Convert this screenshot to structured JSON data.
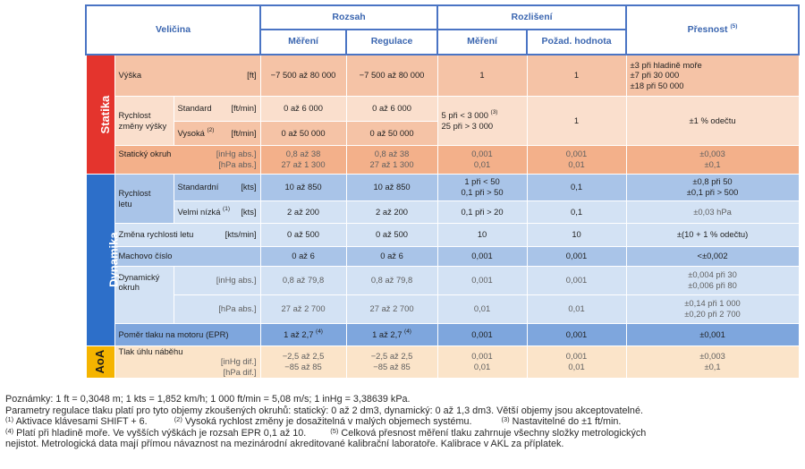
{
  "header": {
    "quantity": "Veličina",
    "range": "Rozsah",
    "resolution": "Rozlišení",
    "accuracy": "Přesnost",
    "accuracy_note": "(5)",
    "measure": "Měření",
    "regulation": "Regulace",
    "res_measure": "Měření",
    "res_required": "Požad. hodnota"
  },
  "sections": {
    "statics": "Statika",
    "dynamics": "Dynamika",
    "aoa": "AoA"
  },
  "rows": {
    "altitude": {
      "label": "Výška",
      "unit": "[ft]",
      "measure": "−7 500 až 80 000",
      "regulation": "−7 500 až 80 000",
      "res_measure": "1",
      "res_required": "1",
      "acc": [
        "±3 při hladině moře",
        "±7 při 30 000",
        "±18 při 50 000"
      ]
    },
    "climb": {
      "label1": "Rychlost",
      "label2": "změny výšky",
      "std_label": "Standard",
      "std_unit": "[ft/min]",
      "std_measure": "0 až 6 000",
      "std_regulation": "0 až 6 000",
      "high_label": "Vysoká",
      "high_note": "(2)",
      "high_unit": "[ft/min]",
      "high_measure": "0 až 50 000",
      "high_regulation": "0 až 50 000",
      "res_line1": "5 při < 3 000",
      "res_line1_note": "(3)",
      "res_line2": "25 při > 3 000",
      "res_required": "1",
      "acc": "±1 % odečtu"
    },
    "static_circuit": {
      "label": "Statický okruh",
      "unit1": "[inHg abs.]",
      "unit2": "[hPa abs.]",
      "measure1": "0,8 až 38",
      "measure2": "27 až 1 300",
      "regulation1": "0,8 až 38",
      "regulation2": "27 až 1 300",
      "res1": "0,001",
      "res2": "0,01",
      "req1": "0,001",
      "req2": "0,01",
      "acc1": "±0,003",
      "acc2": "±0,1"
    },
    "airspeed": {
      "label1": "Rychlost",
      "label2": "letu",
      "std_label": "Standardní",
      "std_unit": "[kts]",
      "std_measure": "10 až 850",
      "std_regulation": "10 až 850",
      "std_res": [
        "1 při < 50",
        "0,1 při > 50"
      ],
      "std_req": "0,1",
      "std_acc": [
        "±0,8 při 50",
        "±0,1 při > 500"
      ],
      "low_label": "Velmi nízká",
      "low_note": "(1)",
      "low_unit": "[kts]",
      "low_measure": "2 až 200",
      "low_regulation": "2 až 200",
      "low_res": "0,1 při > 20",
      "low_req": "0,1",
      "low_acc": "±0,03 hPa"
    },
    "rate_change": {
      "label": "Změna rychlosti letu",
      "unit": "[kts/min]",
      "measure": "0 až 500",
      "regulation": "0 až 500",
      "res": "10",
      "req": "10",
      "acc": "±(10 + 1 % odečtu)"
    },
    "mach": {
      "label": "Machovo číslo",
      "measure": "0 až 6",
      "regulation": "0 až 6",
      "res": "0,001",
      "req": "0,001",
      "acc": "<±0,002"
    },
    "dyn_circuit": {
      "label1": "Dynamický",
      "label2": "okruh",
      "inhg_unit": "[inHg abs.]",
      "inhg_measure": "0,8 až 79,8",
      "inhg_regulation": "0,8 až 79,8",
      "inhg_res": "0,001",
      "inhg_req": "0,001",
      "inhg_acc": [
        "±0,004 při 30",
        "±0,006 při 80"
      ],
      "hpa_unit": "[hPa abs.]",
      "hpa_measure": "27 až 2 700",
      "hpa_regulation": "27 až 2 700",
      "hpa_res": "0,01",
      "hpa_req": "0,01",
      "hpa_acc": [
        "±0,14 při 1 000",
        "±0,20 při 2 700"
      ]
    },
    "epr": {
      "label": "Poměr tlaku na motoru (EPR)",
      "measure": "1 až 2,7",
      "regulation": "1 až 2,7",
      "note": "(4)",
      "res": "0,001",
      "req": "0,001",
      "acc": "±0,001"
    },
    "aoa": {
      "label": "Tlak úhlu náběhu",
      "unit1": "[inHg dif.]",
      "unit2": "[hPa dif.]",
      "measure1": "−2,5 až 2,5",
      "measure2": "−85 až 85",
      "regulation1": "−2,5 až 2,5",
      "regulation2": "−85 až 85",
      "res1": "0,001",
      "res2": "0,01",
      "req1": "0,001",
      "req2": "0,01",
      "acc1": "±0,003",
      "acc2": "±0,1"
    }
  },
  "notes": {
    "line1": "Poznámky: 1 ft = 0,3048 m; 1 kts = 1,852 km/h; 1 000 ft/min = 5,08 m/s; 1 inHg = 3,38639 kPa.",
    "line2": "Parametry regulace tlaku platí pro tyto objemy zkoušených okruhů: statický: 0 až 2 dm3, dynamický: 0 až 1,3 dm3. Větší objemy jsou akceptovatelné.",
    "fn1_mark": "(1)",
    "fn1": "Aktivace klávesami SHIFT + 6.",
    "fn2_mark": "(2)",
    "fn2": "Vysoká rychlost změny je dosažitelná v malých objemech systému.",
    "fn3_mark": "(3)",
    "fn3": "Nastavitelné do ±1 ft/min.",
    "fn4_mark": "(4)",
    "fn4": "Platí při hladině moře. Ve vyšších výškách je rozsah EPR 0,1 až 10.",
    "fn5_mark": "(5)",
    "fn5": "Celková přesnost měření tlaku zahrnuje všechny složky metrologických",
    "line_last": "nejistot. Metrologická data mají přímou návaznost na mezinárodní akreditované kalibrační laboratoře. Kalibrace v AKL za příplatek."
  }
}
